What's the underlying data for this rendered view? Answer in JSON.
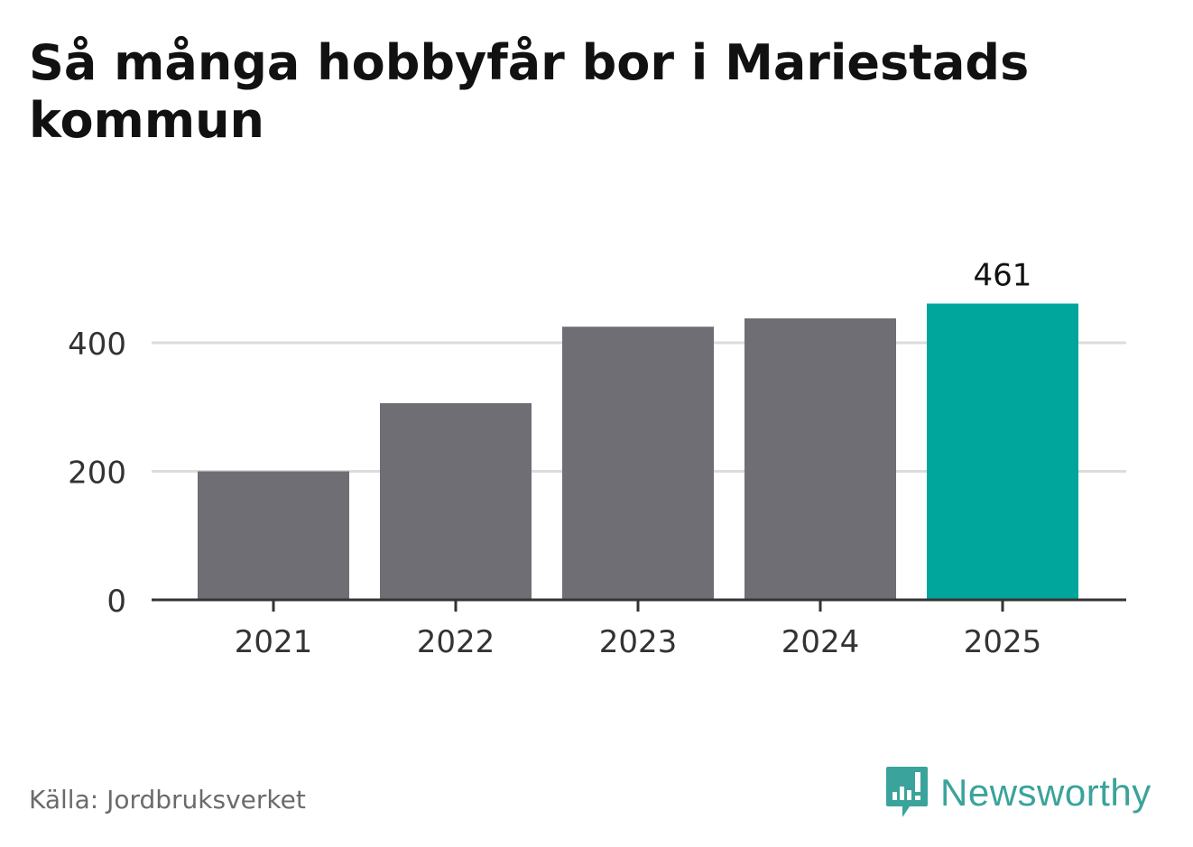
{
  "title": "Så många hobbyfår bor i Mariestads kommun",
  "source": "Källa: Jordbruksverket",
  "brand": {
    "name": "Newsworthy",
    "color": "#3aa39b"
  },
  "colors": {
    "bar": "#6f6e74",
    "highlight": "#00a59b",
    "grid": "#dcdcdc",
    "axis": "#333333"
  },
  "chart_data": {
    "type": "bar",
    "categories": [
      "2021",
      "2022",
      "2023",
      "2024",
      "2025"
    ],
    "values": [
      200,
      306,
      425,
      438,
      461
    ],
    "highlight_index": 4,
    "data_labels": [
      {
        "index": 4,
        "text": "461"
      }
    ],
    "ylim": [
      0,
      480
    ],
    "yticks": [
      0,
      200,
      400
    ],
    "xlabel": "",
    "ylabel": "",
    "grid": true,
    "legend": "none"
  }
}
